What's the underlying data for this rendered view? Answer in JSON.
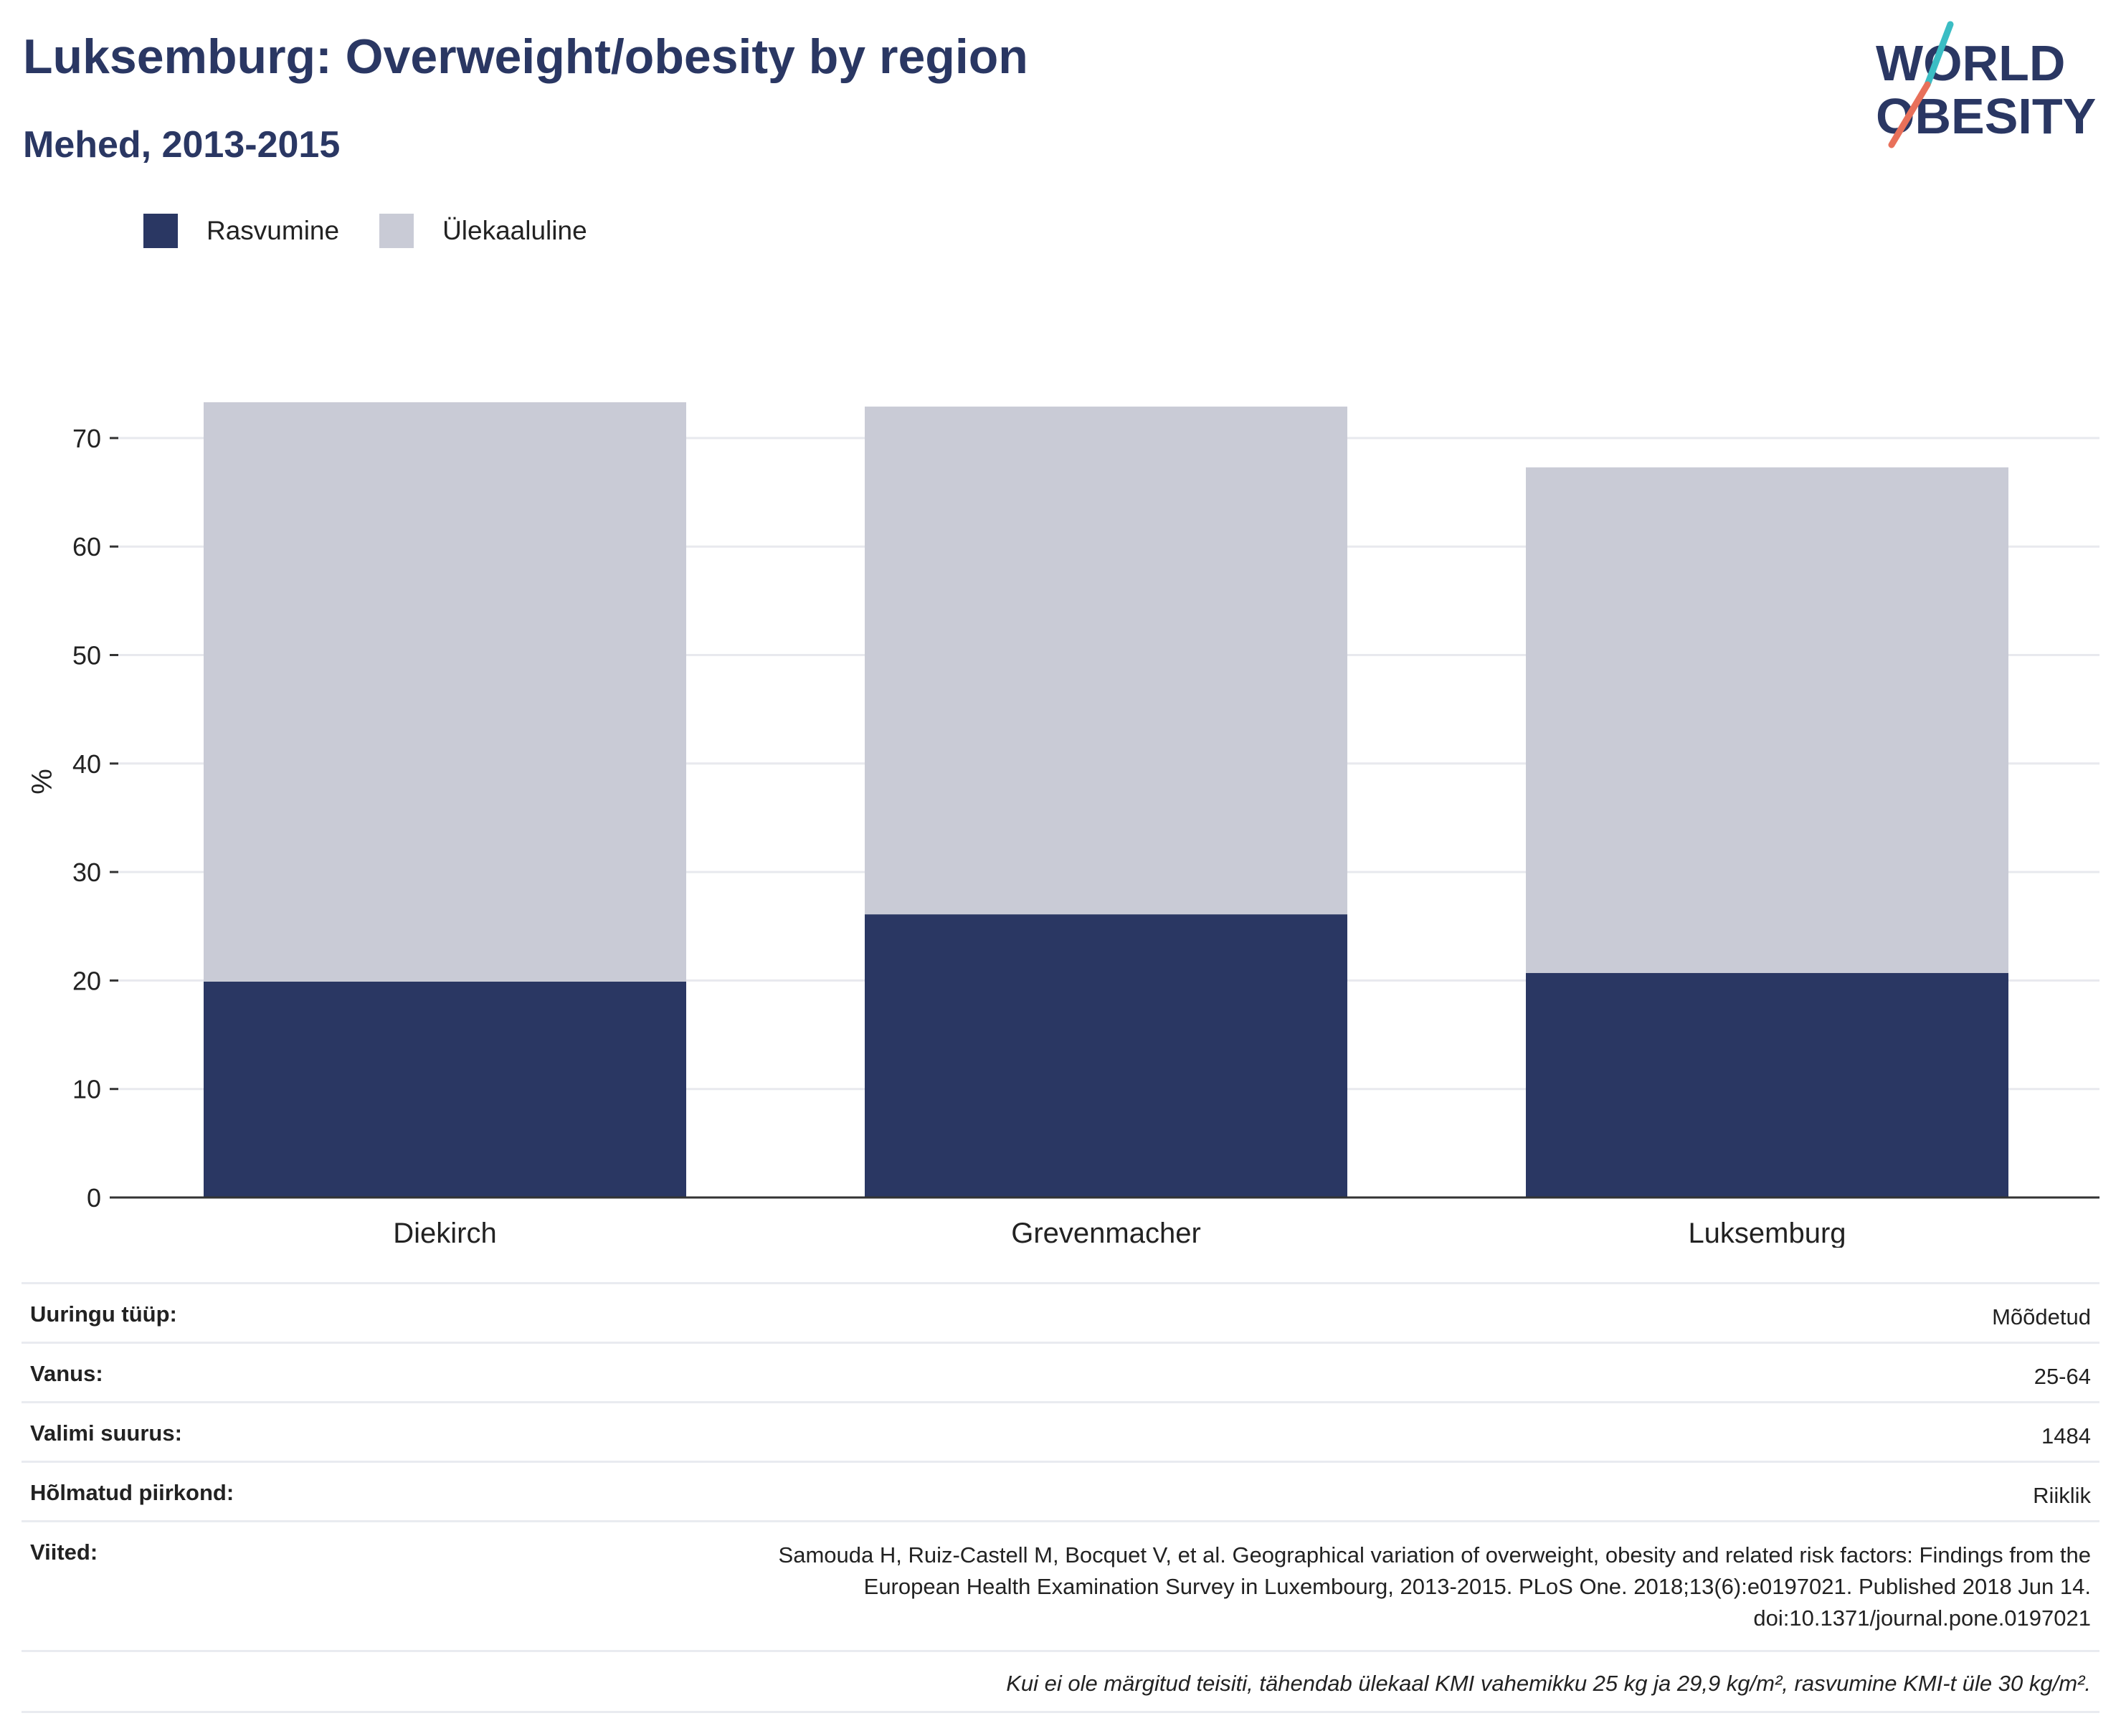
{
  "header": {
    "title": "Luksemburg: Overweight/obesity by region",
    "subtitle": "Mehed, 2013-2015"
  },
  "logo": {
    "line1": "WORLD",
    "line2": "OBESITY",
    "colors": {
      "text": "#2a3763",
      "slash_top": "#3bbdc4",
      "slash_bottom": "#e8705a"
    }
  },
  "legend": [
    {
      "label": "Rasvumine",
      "color": "#2a3763"
    },
    {
      "label": "Ülekaaluline",
      "color": "#c9cbd6"
    }
  ],
  "chart_data": {
    "type": "bar",
    "stacked": true,
    "categories": [
      "Diekirch",
      "Grevenmacher",
      "Luksemburg"
    ],
    "series": [
      {
        "name": "Rasvumine",
        "color": "#2a3763",
        "values": [
          19.9,
          26.1,
          20.7
        ]
      },
      {
        "name": "Ülekaaluline",
        "color": "#c9cbd6",
        "values": [
          53.4,
          46.8,
          46.6
        ]
      }
    ],
    "ylabel": "%",
    "ylim": [
      0,
      75
    ],
    "yticks": [
      0,
      10,
      20,
      30,
      40,
      50,
      60,
      70
    ],
    "grid": true,
    "legend_position": "top-left"
  },
  "info": {
    "rows": [
      {
        "label": "Uuringu tüüp:",
        "value": "Mõõdetud"
      },
      {
        "label": "Vanus:",
        "value": "25-64"
      },
      {
        "label": "Valimi suurus:",
        "value": "1484"
      },
      {
        "label": "Hõlmatud piirkond:",
        "value": "Riiklik"
      }
    ],
    "references_label": "Viited:",
    "references": [
      "Samouda H, Ruiz-Castell M, Bocquet V, et al. Geographical variation of overweight, obesity and related risk factors: Findings from the",
      "European Health Examination Survey in Luxembourg, 2013-2015. PLoS One. 2018;13(6):e0197021. Published 2018 Jun 14.",
      "doi:10.1371/journal.pone.0197021"
    ],
    "note": "Kui ei ole märgitud teisiti, tähendab ülekaal KMI vahemikku 25 kg ja 29,9 kg/m², rasvumine KMI-t üle 30 kg/m²."
  }
}
